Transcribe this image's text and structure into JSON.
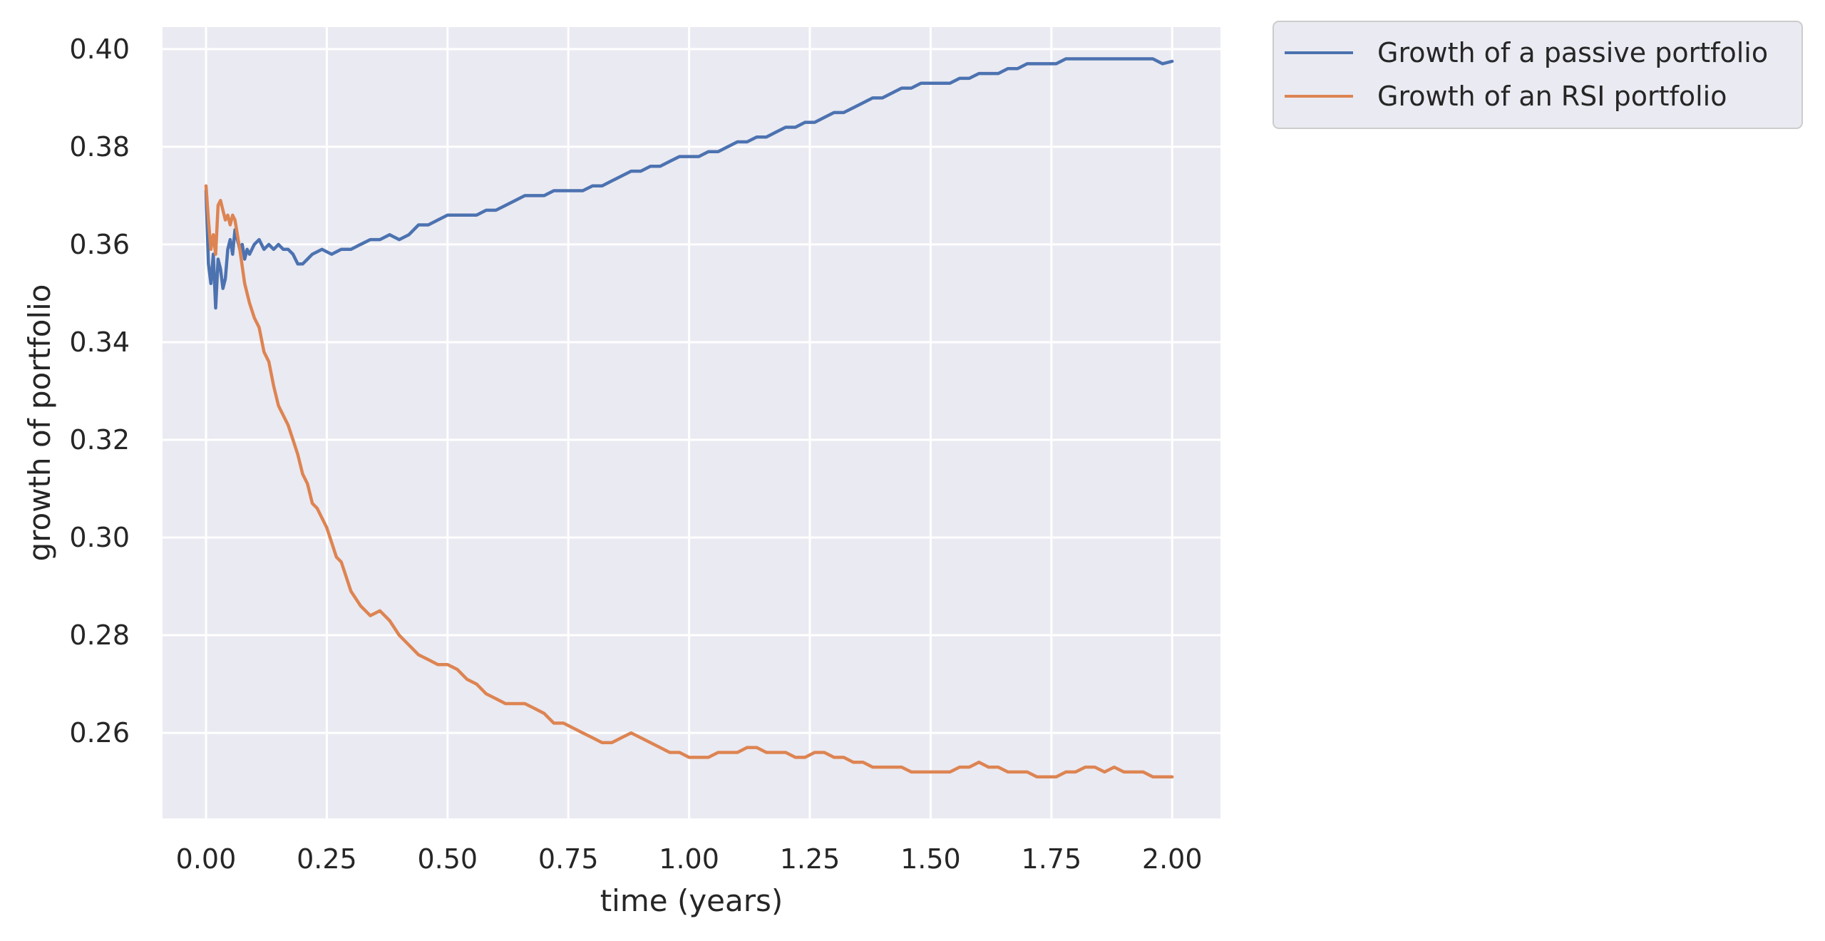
{
  "chart_data": {
    "type": "line",
    "title": "",
    "xlabel": "time (years)",
    "ylabel": "growth of portfolio",
    "xlim": [
      -0.09,
      2.1
    ],
    "ylim": [
      0.2425,
      0.4045
    ],
    "xticks": [
      0.0,
      0.25,
      0.5,
      0.75,
      1.0,
      1.25,
      1.5,
      1.75,
      2.0
    ],
    "xtick_labels": [
      "0.00",
      "0.25",
      "0.50",
      "0.75",
      "1.00",
      "1.25",
      "1.50",
      "1.75",
      "2.00"
    ],
    "yticks": [
      0.26,
      0.28,
      0.3,
      0.32,
      0.34,
      0.36,
      0.38,
      0.4
    ],
    "ytick_labels": [
      "0.26",
      "0.28",
      "0.30",
      "0.32",
      "0.34",
      "0.36",
      "0.38",
      "0.40"
    ],
    "grid": true,
    "legend_position": "outside-top-right",
    "background": "#eaeaf2",
    "series": [
      {
        "name": "Growth of a passive portfolio",
        "color": "#4c72b0",
        "x": [
          0.0,
          0.005,
          0.01,
          0.015,
          0.02,
          0.025,
          0.03,
          0.035,
          0.04,
          0.045,
          0.05,
          0.055,
          0.06,
          0.065,
          0.07,
          0.075,
          0.08,
          0.085,
          0.09,
          0.1,
          0.11,
          0.12,
          0.13,
          0.14,
          0.15,
          0.16,
          0.17,
          0.18,
          0.19,
          0.2,
          0.21,
          0.22,
          0.24,
          0.26,
          0.28,
          0.3,
          0.32,
          0.34,
          0.36,
          0.38,
          0.4,
          0.42,
          0.44,
          0.46,
          0.48,
          0.5,
          0.52,
          0.54,
          0.56,
          0.58,
          0.6,
          0.62,
          0.64,
          0.66,
          0.68,
          0.7,
          0.72,
          0.74,
          0.76,
          0.78,
          0.8,
          0.82,
          0.84,
          0.86,
          0.88,
          0.9,
          0.92,
          0.94,
          0.96,
          0.98,
          1.0,
          1.02,
          1.04,
          1.06,
          1.08,
          1.1,
          1.12,
          1.14,
          1.16,
          1.18,
          1.2,
          1.22,
          1.24,
          1.26,
          1.28,
          1.3,
          1.32,
          1.34,
          1.36,
          1.38,
          1.4,
          1.42,
          1.44,
          1.46,
          1.48,
          1.5,
          1.52,
          1.54,
          1.56,
          1.58,
          1.6,
          1.62,
          1.64,
          1.66,
          1.68,
          1.7,
          1.72,
          1.74,
          1.76,
          1.78,
          1.8,
          1.82,
          1.84,
          1.86,
          1.88,
          1.9,
          1.92,
          1.94,
          1.96,
          1.98,
          2.0
        ],
        "y": [
          0.371,
          0.356,
          0.352,
          0.358,
          0.347,
          0.357,
          0.355,
          0.351,
          0.353,
          0.359,
          0.361,
          0.358,
          0.363,
          0.361,
          0.359,
          0.36,
          0.357,
          0.359,
          0.358,
          0.36,
          0.361,
          0.359,
          0.36,
          0.359,
          0.36,
          0.359,
          0.359,
          0.358,
          0.356,
          0.356,
          0.357,
          0.358,
          0.359,
          0.358,
          0.359,
          0.359,
          0.36,
          0.361,
          0.361,
          0.362,
          0.361,
          0.362,
          0.364,
          0.364,
          0.365,
          0.366,
          0.366,
          0.366,
          0.366,
          0.367,
          0.367,
          0.368,
          0.369,
          0.37,
          0.37,
          0.37,
          0.371,
          0.371,
          0.371,
          0.371,
          0.372,
          0.372,
          0.373,
          0.374,
          0.375,
          0.375,
          0.376,
          0.376,
          0.377,
          0.378,
          0.378,
          0.378,
          0.379,
          0.379,
          0.38,
          0.381,
          0.381,
          0.382,
          0.382,
          0.383,
          0.384,
          0.384,
          0.385,
          0.385,
          0.386,
          0.387,
          0.387,
          0.388,
          0.389,
          0.39,
          0.39,
          0.391,
          0.392,
          0.392,
          0.393,
          0.393,
          0.393,
          0.393,
          0.394,
          0.394,
          0.395,
          0.395,
          0.395,
          0.396,
          0.396,
          0.397,
          0.397,
          0.397,
          0.397,
          0.398,
          0.398,
          0.398,
          0.398,
          0.398,
          0.398,
          0.398,
          0.398,
          0.398,
          0.398,
          0.397,
          0.3975
        ]
      },
      {
        "name": "Growth of an RSI portfolio",
        "color": "#dd8452",
        "x": [
          0.0,
          0.005,
          0.01,
          0.015,
          0.02,
          0.025,
          0.03,
          0.035,
          0.04,
          0.045,
          0.05,
          0.055,
          0.06,
          0.065,
          0.07,
          0.08,
          0.09,
          0.1,
          0.11,
          0.12,
          0.13,
          0.14,
          0.15,
          0.16,
          0.17,
          0.18,
          0.19,
          0.2,
          0.21,
          0.22,
          0.23,
          0.24,
          0.25,
          0.26,
          0.27,
          0.28,
          0.29,
          0.3,
          0.32,
          0.34,
          0.36,
          0.38,
          0.4,
          0.42,
          0.44,
          0.46,
          0.48,
          0.5,
          0.52,
          0.54,
          0.56,
          0.58,
          0.6,
          0.62,
          0.64,
          0.66,
          0.68,
          0.7,
          0.72,
          0.74,
          0.76,
          0.78,
          0.8,
          0.82,
          0.84,
          0.86,
          0.88,
          0.9,
          0.92,
          0.94,
          0.96,
          0.98,
          1.0,
          1.02,
          1.04,
          1.06,
          1.08,
          1.1,
          1.12,
          1.14,
          1.16,
          1.18,
          1.2,
          1.22,
          1.24,
          1.26,
          1.28,
          1.3,
          1.32,
          1.34,
          1.36,
          1.38,
          1.4,
          1.42,
          1.44,
          1.46,
          1.48,
          1.5,
          1.52,
          1.54,
          1.56,
          1.58,
          1.6,
          1.62,
          1.64,
          1.66,
          1.68,
          1.7,
          1.72,
          1.74,
          1.76,
          1.78,
          1.8,
          1.82,
          1.84,
          1.86,
          1.88,
          1.9,
          1.92,
          1.94,
          1.96,
          1.98,
          2.0
        ],
        "y": [
          0.372,
          0.365,
          0.359,
          0.362,
          0.358,
          0.368,
          0.369,
          0.367,
          0.365,
          0.366,
          0.364,
          0.366,
          0.365,
          0.362,
          0.359,
          0.352,
          0.348,
          0.345,
          0.343,
          0.338,
          0.336,
          0.331,
          0.327,
          0.325,
          0.323,
          0.32,
          0.317,
          0.313,
          0.311,
          0.307,
          0.306,
          0.304,
          0.302,
          0.299,
          0.296,
          0.295,
          0.292,
          0.289,
          0.286,
          0.284,
          0.285,
          0.283,
          0.28,
          0.278,
          0.276,
          0.275,
          0.274,
          0.274,
          0.273,
          0.271,
          0.27,
          0.268,
          0.267,
          0.266,
          0.266,
          0.266,
          0.265,
          0.264,
          0.262,
          0.262,
          0.261,
          0.26,
          0.259,
          0.258,
          0.258,
          0.259,
          0.26,
          0.259,
          0.258,
          0.257,
          0.256,
          0.256,
          0.255,
          0.255,
          0.255,
          0.256,
          0.256,
          0.256,
          0.257,
          0.257,
          0.256,
          0.256,
          0.256,
          0.255,
          0.255,
          0.256,
          0.256,
          0.255,
          0.255,
          0.254,
          0.254,
          0.253,
          0.253,
          0.253,
          0.253,
          0.252,
          0.252,
          0.252,
          0.252,
          0.252,
          0.253,
          0.253,
          0.254,
          0.253,
          0.253,
          0.252,
          0.252,
          0.252,
          0.251,
          0.251,
          0.251,
          0.252,
          0.252,
          0.253,
          0.253,
          0.252,
          0.253,
          0.252,
          0.252,
          0.252,
          0.251,
          0.251,
          0.251
        ]
      }
    ]
  }
}
